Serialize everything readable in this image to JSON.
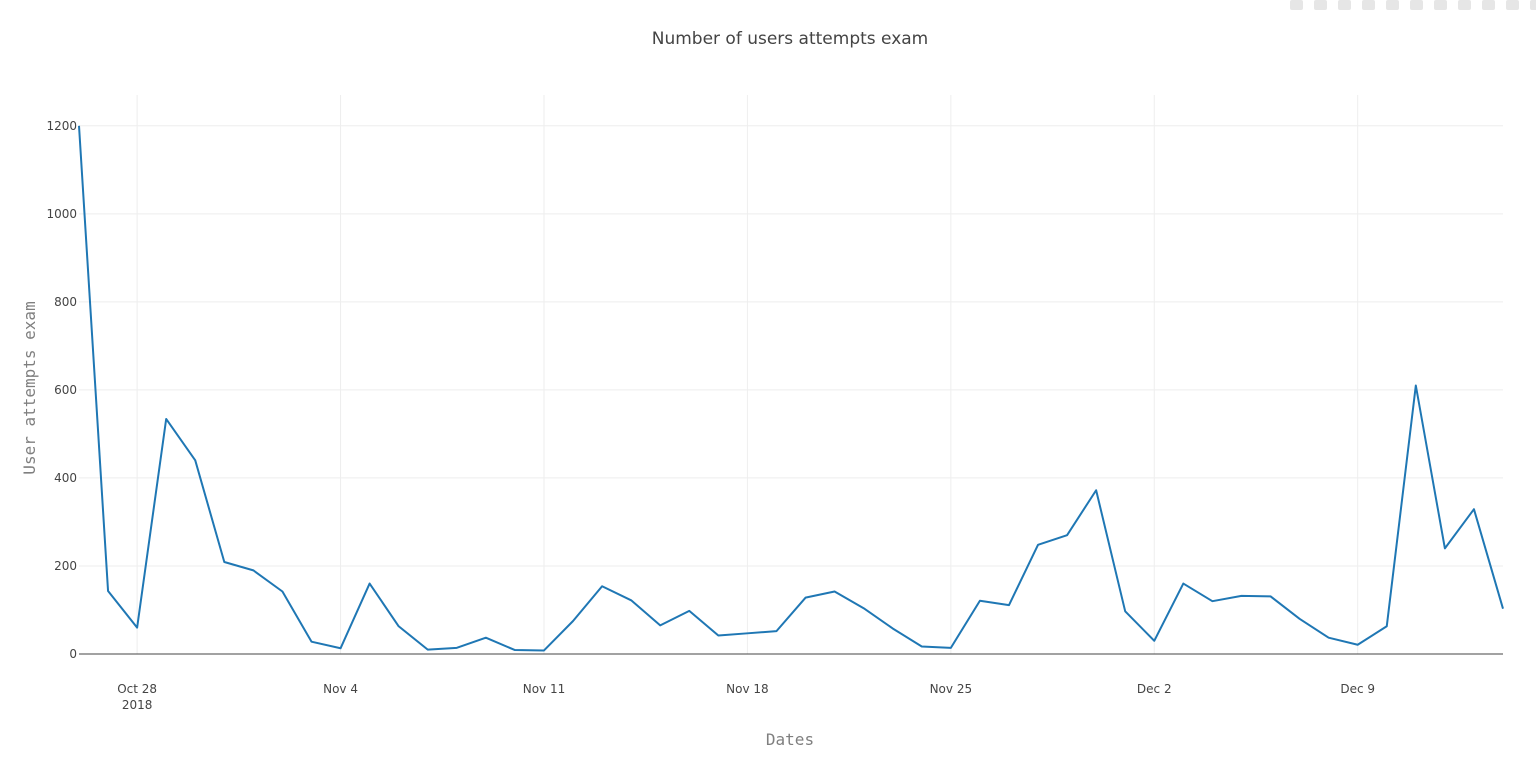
{
  "chart_data": {
    "type": "line",
    "title": "Number of users attempts exam",
    "xlabel": "Dates",
    "ylabel": "User attempts exam",
    "x_tick_labels": [
      "Oct 28",
      "Nov 4",
      "Nov 11",
      "Nov 18",
      "Nov 25",
      "Dec 2",
      "Dec 9"
    ],
    "x_tick_dates": [
      "2018-10-28",
      "2018-11-04",
      "2018-11-11",
      "2018-11-18",
      "2018-11-25",
      "2018-12-02",
      "2018-12-09"
    ],
    "x_tick_year": "2018",
    "xlim": [
      "2018-10-26",
      "2018-12-14"
    ],
    "y_ticks": [
      0,
      200,
      400,
      600,
      800,
      1000,
      1200
    ],
    "ylim": [
      0,
      1270
    ],
    "grid": true,
    "line_color": "#1f77b4",
    "series": [
      {
        "x": [
          "2018-10-26",
          "2018-10-27",
          "2018-10-28",
          "2018-10-29",
          "2018-10-30",
          "2018-10-31",
          "2018-11-01",
          "2018-11-02",
          "2018-11-03",
          "2018-11-04",
          "2018-11-05",
          "2018-11-06",
          "2018-11-07",
          "2018-11-08",
          "2018-11-09",
          "2018-11-10",
          "2018-11-11",
          "2018-11-12",
          "2018-11-13",
          "2018-11-14",
          "2018-11-15",
          "2018-11-16",
          "2018-11-17",
          "2018-11-18",
          "2018-11-19",
          "2018-11-20",
          "2018-11-21",
          "2018-11-22",
          "2018-11-23",
          "2018-11-24",
          "2018-11-25",
          "2018-11-26",
          "2018-11-27",
          "2018-11-28",
          "2018-11-29",
          "2018-11-30",
          "2018-12-01",
          "2018-12-02",
          "2018-12-03",
          "2018-12-04",
          "2018-12-05",
          "2018-12-06",
          "2018-12-07",
          "2018-12-08",
          "2018-12-09",
          "2018-12-10",
          "2018-12-11",
          "2018-12-12",
          "2018-12-13",
          "2018-12-14"
        ],
        "values": [
          1200,
          143,
          60,
          534,
          440,
          209,
          190,
          142,
          28,
          13,
          160,
          63,
          10,
          14,
          37,
          9,
          8,
          75,
          154,
          122,
          65,
          98,
          42,
          47,
          52,
          128,
          142,
          104,
          58,
          17,
          14,
          121,
          111,
          248,
          270,
          372,
          97,
          30,
          160,
          120,
          132,
          131,
          80,
          37,
          21,
          63,
          610,
          240,
          329,
          103
        ]
      }
    ]
  },
  "modebar": {
    "icons": [
      "camera-icon",
      "zoom-icon",
      "pan-icon",
      "box-select-icon",
      "lasso-icon",
      "zoom-in-icon",
      "zoom-out-icon",
      "autoscale-icon",
      "reset-icon",
      "spike-icon",
      "hover-icon"
    ]
  }
}
